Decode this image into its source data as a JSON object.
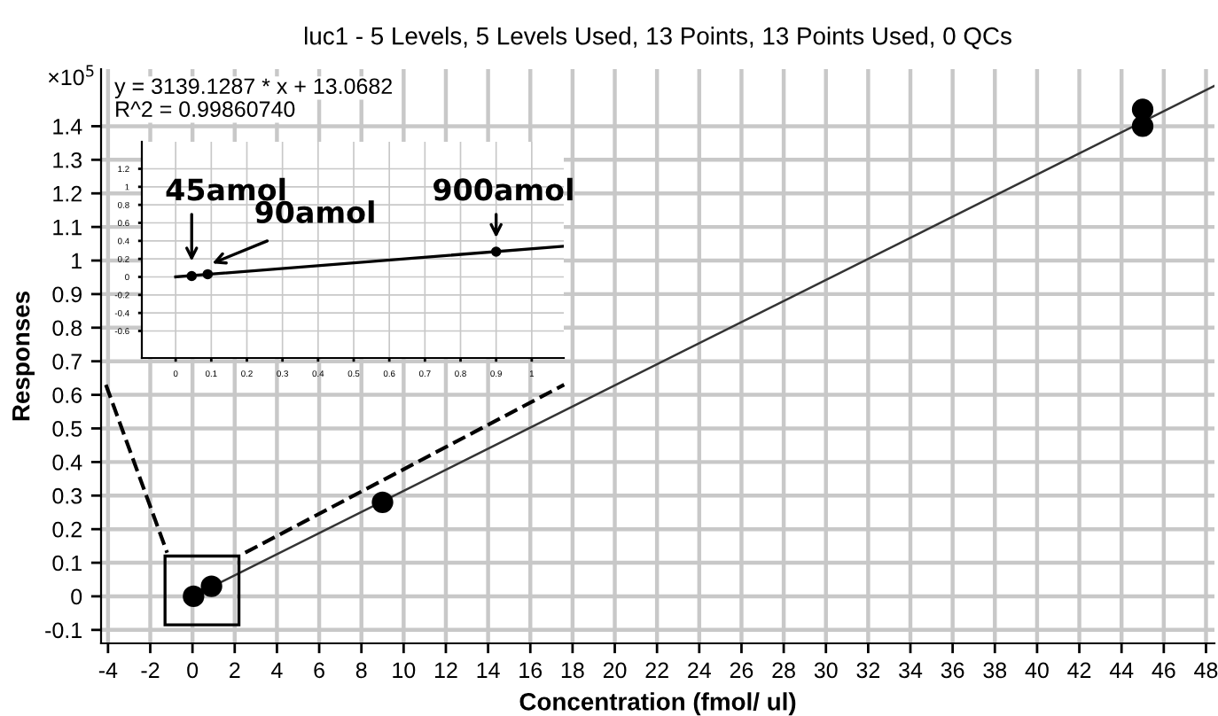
{
  "chart_data": [
    {
      "type": "scatter",
      "title": "luc1 - 5 Levels, 5 Levels Used, 13 Points, 13 Points Used, 0 QCs",
      "xlabel": "Concentration (fmol/ ul)",
      "ylabel": "Responses",
      "xlim": [
        -4.33,
        48.4
      ],
      "ylim": [
        -0.14,
        1.57
      ],
      "xticks": [
        -4,
        -2,
        0,
        2,
        4,
        6,
        8,
        10,
        12,
        14,
        16,
        18,
        20,
        22,
        24,
        26,
        28,
        30,
        32,
        34,
        36,
        38,
        40,
        42,
        44,
        46,
        48
      ],
      "yticks": [
        -0.1,
        0,
        0.1,
        0.2,
        0.3,
        0.4,
        0.5,
        0.6,
        0.7,
        0.8,
        0.9,
        1,
        1.1,
        1.2,
        1.3,
        1.4
      ],
      "grid": true,
      "marker": "circle",
      "annotations": [
        "×10$^{5}$",
        "y = 3139.1287 * x + 13.0682",
        "R^2 = 0.99860740"
      ],
      "series": [
        {
          "color": "#000000",
          "x": [
            0.05,
            0.9,
            9,
            45,
            45
          ],
          "values": [
            0,
            0.03,
            0.28,
            1.4,
            1.45
          ]
        },
        {
          "type": "line",
          "color": "#333333",
          "x": [
            0,
            48.4
          ],
          "values": [
            0,
            1.52
          ],
          "marker": "none",
          "line_style": "solid"
        }
      ]
    },
    {
      "type": "scatter",
      "xlim": [
        -0.095,
        1.09
      ],
      "ylim": [
        -0.9,
        1.5
      ],
      "xticks": [
        0,
        0.1,
        0.2,
        0.3,
        0.4,
        0.5,
        0.6,
        0.7,
        0.8,
        0.9,
        1
      ],
      "yticks": [
        -0.6,
        -0.4,
        -0.2,
        0,
        0.2,
        0.4,
        0.6,
        0.8,
        1,
        1.2
      ],
      "grid": true,
      "marker": "circle",
      "annotations": [
        {
          "text": "45amol",
          "x": 0.045,
          "y": 0.02
        },
        {
          "text": "90amol",
          "x": 0.09,
          "y": 0.03
        },
        {
          "text": "900amol",
          "x": 0.9,
          "y": 0.28
        }
      ],
      "series": [
        {
          "color": "#000000",
          "x": [
            0.045,
            0.09,
            0.9
          ],
          "values": [
            0.01,
            0.03,
            0.28
          ]
        },
        {
          "type": "line",
          "color": "#000000",
          "x": [
            0,
            1.09
          ],
          "values": [
            0,
            0.34
          ],
          "marker": "none",
          "line_style": "solid"
        }
      ]
    }
  ]
}
